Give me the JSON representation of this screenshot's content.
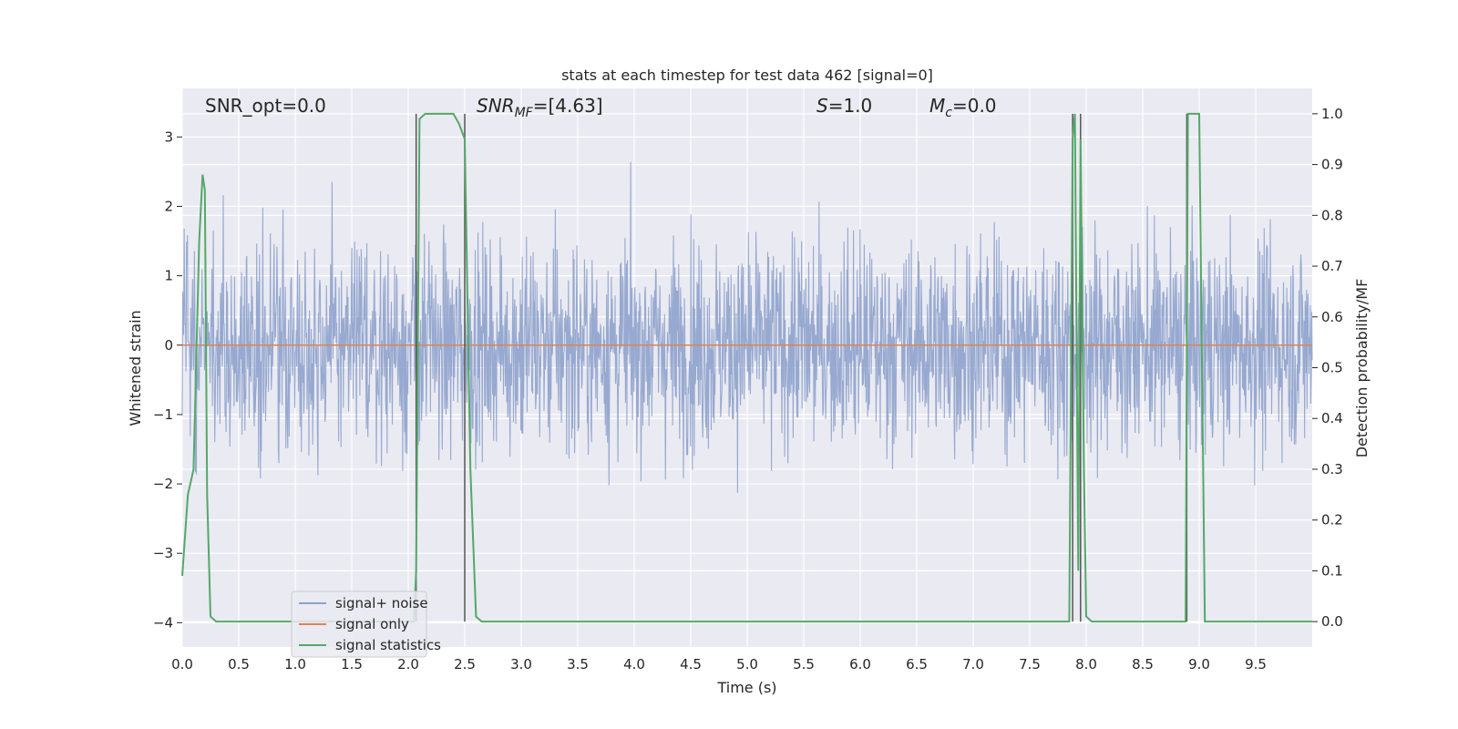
{
  "chart_data": {
    "type": "line",
    "title": "stats at each timestep for test data 462 [signal=0]",
    "xlabel": "Time (s)",
    "ylabel_left": "Whitened strain",
    "ylabel_right": "Detection probability/MF",
    "xlim": [
      0.0,
      10.0
    ],
    "ylim_left": [
      -4.35,
      3.7
    ],
    "ylim_right": [
      -0.05,
      1.05
    ],
    "x_ticks": [
      0.0,
      0.5,
      1.0,
      1.5,
      2.0,
      2.5,
      3.0,
      3.5,
      4.0,
      4.5,
      5.0,
      5.5,
      6.0,
      6.5,
      7.0,
      7.5,
      8.0,
      8.5,
      9.0,
      9.5
    ],
    "x_tick_labels": [
      "0.0",
      "0.5",
      "1.0",
      "1.5",
      "2.0",
      "2.5",
      "3.0",
      "3.5",
      "4.0",
      "4.5",
      "5.0",
      "5.5",
      "6.0",
      "6.5",
      "7.0",
      "7.5",
      "8.0",
      "8.5",
      "9.0",
      "9.5"
    ],
    "left_ticks": [
      3,
      2,
      1,
      0,
      -1,
      -2,
      -3,
      -4
    ],
    "left_tick_labels": [
      "3",
      "2",
      "1",
      "0",
      "−1",
      "−2",
      "−3",
      "−4"
    ],
    "right_ticks": [
      1.0,
      0.9,
      0.8,
      0.7,
      0.6,
      0.5,
      0.4,
      0.3,
      0.2,
      0.1,
      0.0
    ],
    "right_tick_labels": [
      "1.0",
      "0.9",
      "0.8",
      "0.7",
      "0.6",
      "0.5",
      "0.4",
      "0.3",
      "0.2",
      "0.1",
      "0.0"
    ],
    "grid": true,
    "legend_position": "bottom-left",
    "series": [
      {
        "name": "signal+ noise",
        "color": "#8ea2cc",
        "axis": "left",
        "style": "noise",
        "amplitude_std": 0.75
      },
      {
        "name": "signal only",
        "color": "#dd8452",
        "axis": "left",
        "x": [
          0.0,
          10.0
        ],
        "y": [
          0.0,
          0.0
        ]
      },
      {
        "name": "signal statistics",
        "color": "#55a868",
        "axis": "right",
        "x": [
          0.0,
          0.05,
          0.1,
          0.15,
          0.18,
          0.2,
          0.22,
          0.25,
          0.3,
          2.05,
          2.07,
          2.1,
          2.15,
          2.4,
          2.45,
          2.5,
          2.55,
          2.6,
          2.65,
          7.85,
          7.88,
          7.9,
          7.93,
          7.95,
          7.98,
          8.0,
          8.05,
          8.88,
          8.9,
          8.95,
          9.0,
          9.05,
          9.1,
          10.0
        ],
        "y": [
          0.09,
          0.25,
          0.3,
          0.75,
          0.88,
          0.85,
          0.25,
          0.01,
          0.0,
          0.0,
          0.1,
          0.99,
          1.0,
          1.0,
          0.98,
          0.95,
          0.3,
          0.01,
          0.0,
          0.0,
          0.95,
          1.0,
          0.1,
          0.95,
          0.3,
          0.01,
          0.0,
          0.0,
          1.0,
          1.0,
          1.0,
          0.0,
          0.0,
          0.0
        ]
      }
    ],
    "vertical_lines": [
      2.07,
      2.5,
      7.88,
      7.95,
      8.89
    ],
    "annotations": [
      {
        "id": "snr-opt",
        "text": "SNR_opt=0.0"
      },
      {
        "id": "snr-mf",
        "text_main": "SNR",
        "text_sub": "MF",
        "text_rest": "=[4.63]"
      },
      {
        "id": "s-value",
        "text_main": "S",
        "text_rest": "=1.0"
      },
      {
        "id": "mc-value",
        "text_main": "M",
        "text_sub": "c",
        "text_rest": "=0.0"
      }
    ]
  }
}
